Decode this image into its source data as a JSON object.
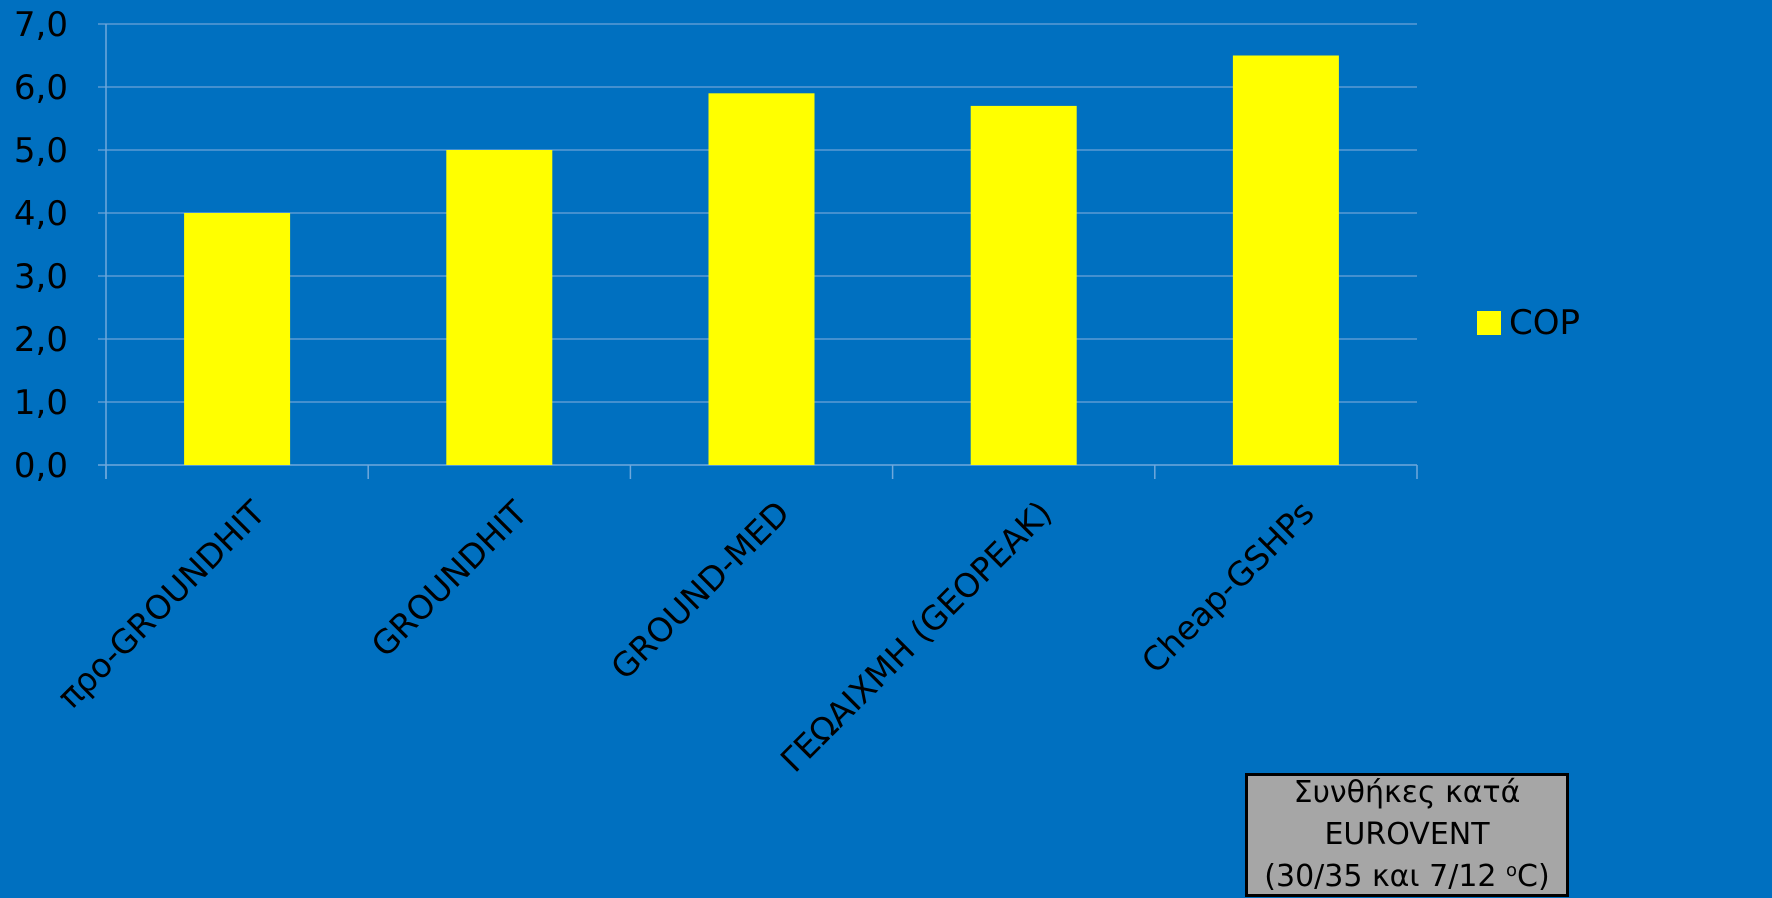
{
  "colors": {
    "background": "#0070C0",
    "bar": "#FFFF00",
    "gridline": "#5A9AD4",
    "text": "#000000",
    "note_background": "#A6A6A6"
  },
  "chart_data": {
    "type": "bar",
    "categories": [
      "προ-GROUNDHIT",
      "GROUNDHIT",
      "GROUND-MED",
      "ΓΕΩΑΙΧΜΗ (GEOPEAK)",
      "Cheap-GSHPs"
    ],
    "series": [
      {
        "name": "COP",
        "values": [
          4.0,
          5.0,
          5.9,
          5.7,
          6.5
        ]
      }
    ],
    "yticks": [
      "0,0",
      "1,0",
      "2,0",
      "3,0",
      "4,0",
      "5,0",
      "6,0",
      "7,0"
    ],
    "ylim": [
      0,
      7
    ],
    "grid": true,
    "legend_position": "right"
  },
  "legend": {
    "label": "COP"
  },
  "note": {
    "line1": "Συνθήκες κατά EUROVENT",
    "line2_prefix": "(30/35 και 7/12 ",
    "line2_sup": "o",
    "line2_suffix": "C)"
  }
}
